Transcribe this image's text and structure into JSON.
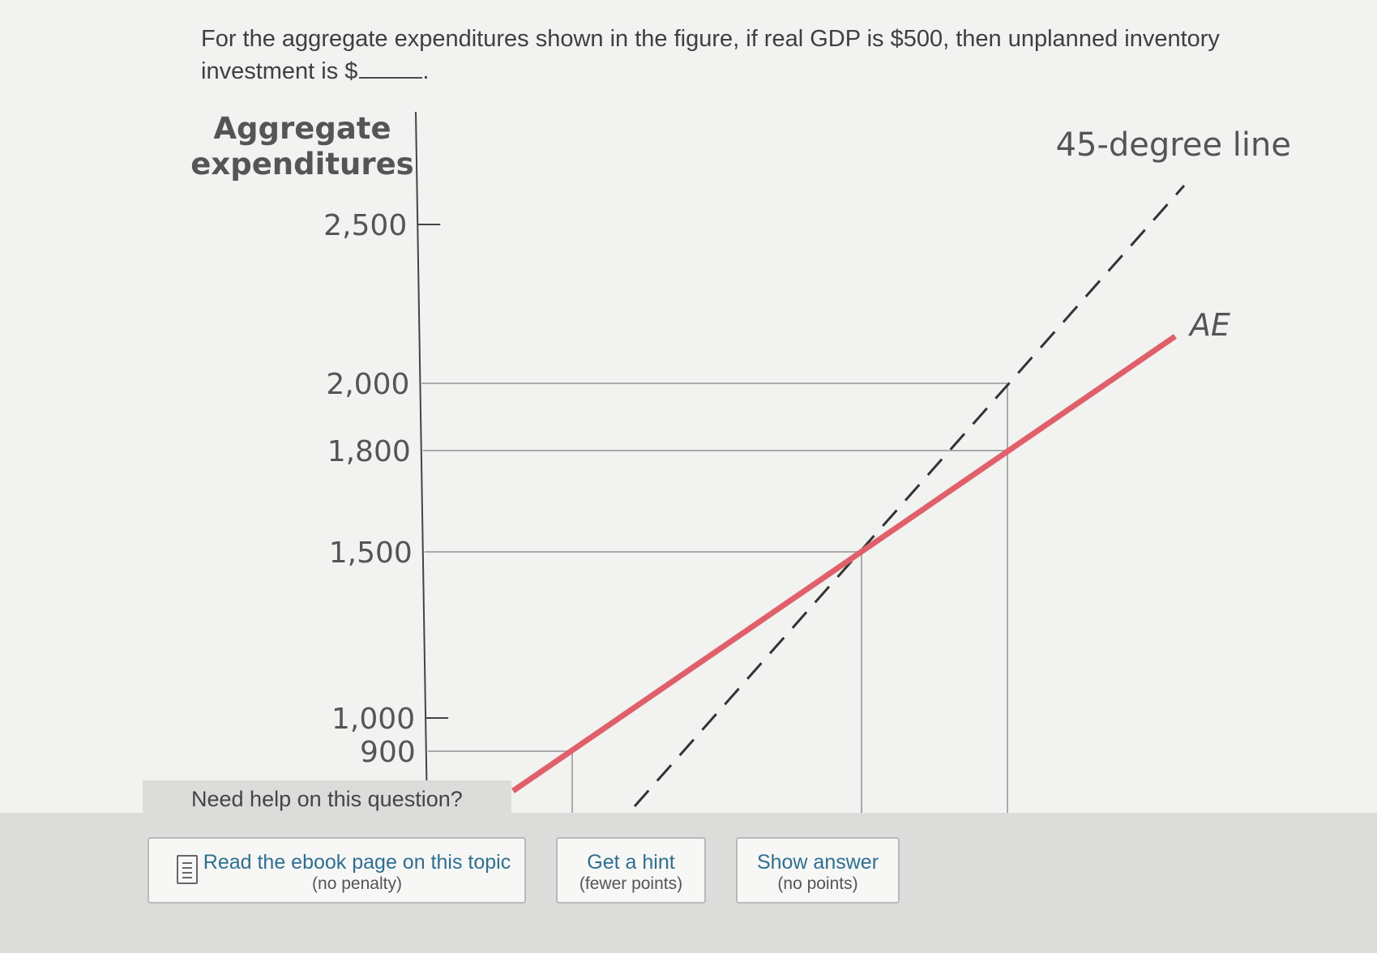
{
  "question": {
    "text": "For the aggregate expenditures shown in the figure, if real GDP is $500, then unplanned inventory investment is $",
    "suffix": "."
  },
  "chart_data": {
    "type": "line",
    "ylabel_line1": "Aggregate",
    "ylabel_line2": "expenditures",
    "yticks": [
      {
        "value": 2500,
        "label": "2,500"
      },
      {
        "value": 2000,
        "label": "2,000"
      },
      {
        "value": 1800,
        "label": "1,800"
      },
      {
        "value": 1500,
        "label": "1,500"
      },
      {
        "value": 1000,
        "label": "1,000"
      },
      {
        "value": 900,
        "label": "900"
      }
    ],
    "reference_levels": [
      2000,
      1800,
      1500,
      900
    ],
    "series": [
      {
        "name": "45-degree line",
        "style": "dashed",
        "color": "#333333"
      },
      {
        "name": "AE",
        "style": "solid",
        "color": "#e0606a"
      }
    ],
    "ylim": [
      750,
      2800
    ]
  },
  "help": {
    "heading": "Need help on this question?",
    "ebook_label": "Read the ebook page on this topic",
    "ebook_sub": "(no penalty)",
    "hint_label": "Get a hint",
    "hint_sub": "(fewer points)",
    "answer_label": "Show answer",
    "answer_sub": "(no points)"
  }
}
